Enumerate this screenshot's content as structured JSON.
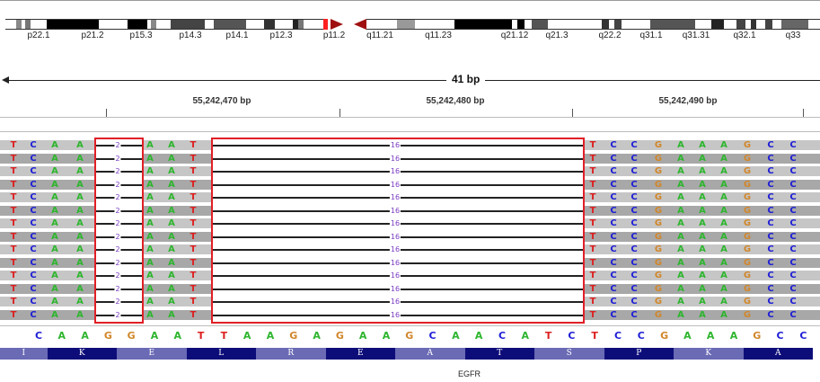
{
  "ideogram": {
    "band_labels": [
      "p22.1",
      "p21.2",
      "p15.3",
      "p14.3",
      "p14.1",
      "p12.3",
      "p11.2",
      "q11.21",
      "q11.23",
      "q21.12",
      "q21.3",
      "q22.2",
      "q31.1",
      "q31.31",
      "q32.1",
      "q33"
    ]
  },
  "ruler": {
    "span": "41 bp",
    "positions": [
      "55,242,470 bp",
      "55,242,480 bp",
      "55,242,490 bp"
    ]
  },
  "reads": {
    "count": 14,
    "deletion_small_label": "2",
    "deletion_large_label": "16",
    "left_bases": [
      "T",
      "C",
      "A",
      "A"
    ],
    "mid_bases": [
      "A",
      "A",
      "T"
    ],
    "right_bases": [
      "T",
      "C",
      "C",
      "G",
      "A",
      "A",
      "A",
      "G",
      "C",
      "C"
    ]
  },
  "reference": {
    "sequence": [
      "C",
      "A",
      "A",
      "G",
      "G",
      "A",
      "A",
      "T",
      "T",
      "A",
      "A",
      "G",
      "A",
      "G",
      "A",
      "A",
      "G",
      "C",
      "A",
      "A",
      "C",
      "A",
      "T",
      "C",
      "T",
      "C",
      "C",
      "G",
      "A",
      "A",
      "A",
      "G",
      "C",
      "C"
    ]
  },
  "amino_acids": [
    "I",
    "K",
    "E",
    "L",
    "R",
    "E",
    "A",
    "T",
    "S",
    "P",
    "K",
    "A"
  ],
  "gene": {
    "name": "EGFR"
  },
  "colors": {
    "A": "#2db52d",
    "C": "#1d1dd6",
    "G": "#d1862a",
    "T": "#dc1f1f",
    "highlight": "#e01f26",
    "deletion_label": "#7a3bc2"
  }
}
